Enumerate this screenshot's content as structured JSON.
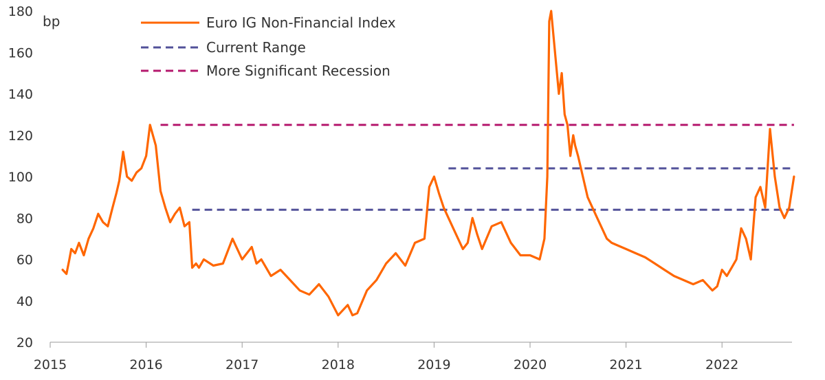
{
  "chart_data": {
    "type": "line",
    "unit_label": "bp",
    "ylim": [
      20,
      180
    ],
    "yticks": [
      "20",
      "40",
      "60",
      "80",
      "100",
      "120",
      "140",
      "160",
      "180"
    ],
    "xlim": [
      2015,
      2022.75
    ],
    "xticks": [
      "2015",
      "2016",
      "2017",
      "2018",
      "2019",
      "2020",
      "2021",
      "2022"
    ],
    "grid": false,
    "legend_position": "top",
    "series": [
      {
        "name": "Euro IG Non-Financial Index",
        "color": "#ff6600",
        "style": "solid",
        "x": [
          2015.13,
          2015.17,
          2015.2,
          2015.22,
          2015.26,
          2015.3,
          2015.35,
          2015.4,
          2015.45,
          2015.5,
          2015.55,
          2015.6,
          2015.65,
          2015.69,
          2015.72,
          2015.76,
          2015.8,
          2015.85,
          2015.9,
          2015.95,
          2016.0,
          2016.04,
          2016.07,
          2016.1,
          2016.15,
          2016.2,
          2016.25,
          2016.3,
          2016.35,
          2016.4,
          2016.45,
          2016.48,
          2016.52,
          2016.55,
          2016.6,
          2016.7,
          2016.8,
          2016.9,
          2017.0,
          2017.1,
          2017.15,
          2017.2,
          2017.3,
          2017.4,
          2017.5,
          2017.6,
          2017.7,
          2017.8,
          2017.85,
          2017.9,
          2018.0,
          2018.1,
          2018.15,
          2018.2,
          2018.3,
          2018.4,
          2018.5,
          2018.6,
          2018.7,
          2018.8,
          2018.9,
          2018.95,
          2019.0,
          2019.05,
          2019.1,
          2019.2,
          2019.3,
          2019.35,
          2019.4,
          2019.45,
          2019.5,
          2019.6,
          2019.7,
          2019.8,
          2019.9,
          2020.0,
          2020.1,
          2020.15,
          2020.18,
          2020.2,
          2020.22,
          2020.25,
          2020.3,
          2020.33,
          2020.36,
          2020.39,
          2020.42,
          2020.45,
          2020.47,
          2020.5,
          2020.55,
          2020.6,
          2020.7,
          2020.8,
          2020.85,
          2020.9,
          2021.0,
          2021.1,
          2021.2,
          2021.3,
          2021.4,
          2021.5,
          2021.6,
          2021.7,
          2021.8,
          2021.9,
          2021.95,
          2022.0,
          2022.05,
          2022.1,
          2022.15,
          2022.2,
          2022.25,
          2022.3,
          2022.35,
          2022.4,
          2022.45,
          2022.5,
          2022.55,
          2022.6,
          2022.65,
          2022.7,
          2022.75
        ],
        "values": [
          55,
          53,
          60,
          65,
          63,
          68,
          62,
          70,
          75,
          82,
          78,
          76,
          85,
          92,
          98,
          112,
          100,
          98,
          102,
          104,
          110,
          125,
          120,
          115,
          93,
          85,
          78,
          82,
          85,
          76,
          78,
          56,
          58,
          56,
          60,
          57,
          58,
          70,
          60,
          66,
          58,
          60,
          52,
          55,
          50,
          45,
          43,
          48,
          45,
          42,
          33,
          38,
          33,
          34,
          45,
          50,
          58,
          63,
          57,
          68,
          70,
          95,
          100,
          92,
          85,
          75,
          65,
          68,
          80,
          72,
          65,
          76,
          78,
          68,
          62,
          62,
          60,
          70,
          100,
          175,
          180,
          165,
          140,
          150,
          130,
          125,
          110,
          120,
          115,
          110,
          100,
          90,
          80,
          70,
          68,
          67,
          65,
          63,
          61,
          58,
          55,
          52,
          50,
          48,
          50,
          45,
          47,
          55,
          52,
          56,
          60,
          75,
          70,
          60,
          90,
          95,
          85,
          123,
          100,
          85,
          80,
          85,
          100
        ]
      },
      {
        "name": "Current Range",
        "color": "#525199",
        "style": "dashed",
        "segments": [
          {
            "x": [
              2016.48,
              2022.75
            ],
            "value": 84
          },
          {
            "x": [
              2019.15,
              2022.75
            ],
            "value": 104
          }
        ]
      },
      {
        "name": "More Significant Recession",
        "color": "#b5196e",
        "style": "dashed",
        "segments": [
          {
            "x": [
              2016.15,
              2022.75
            ],
            "value": 125
          }
        ]
      }
    ]
  }
}
